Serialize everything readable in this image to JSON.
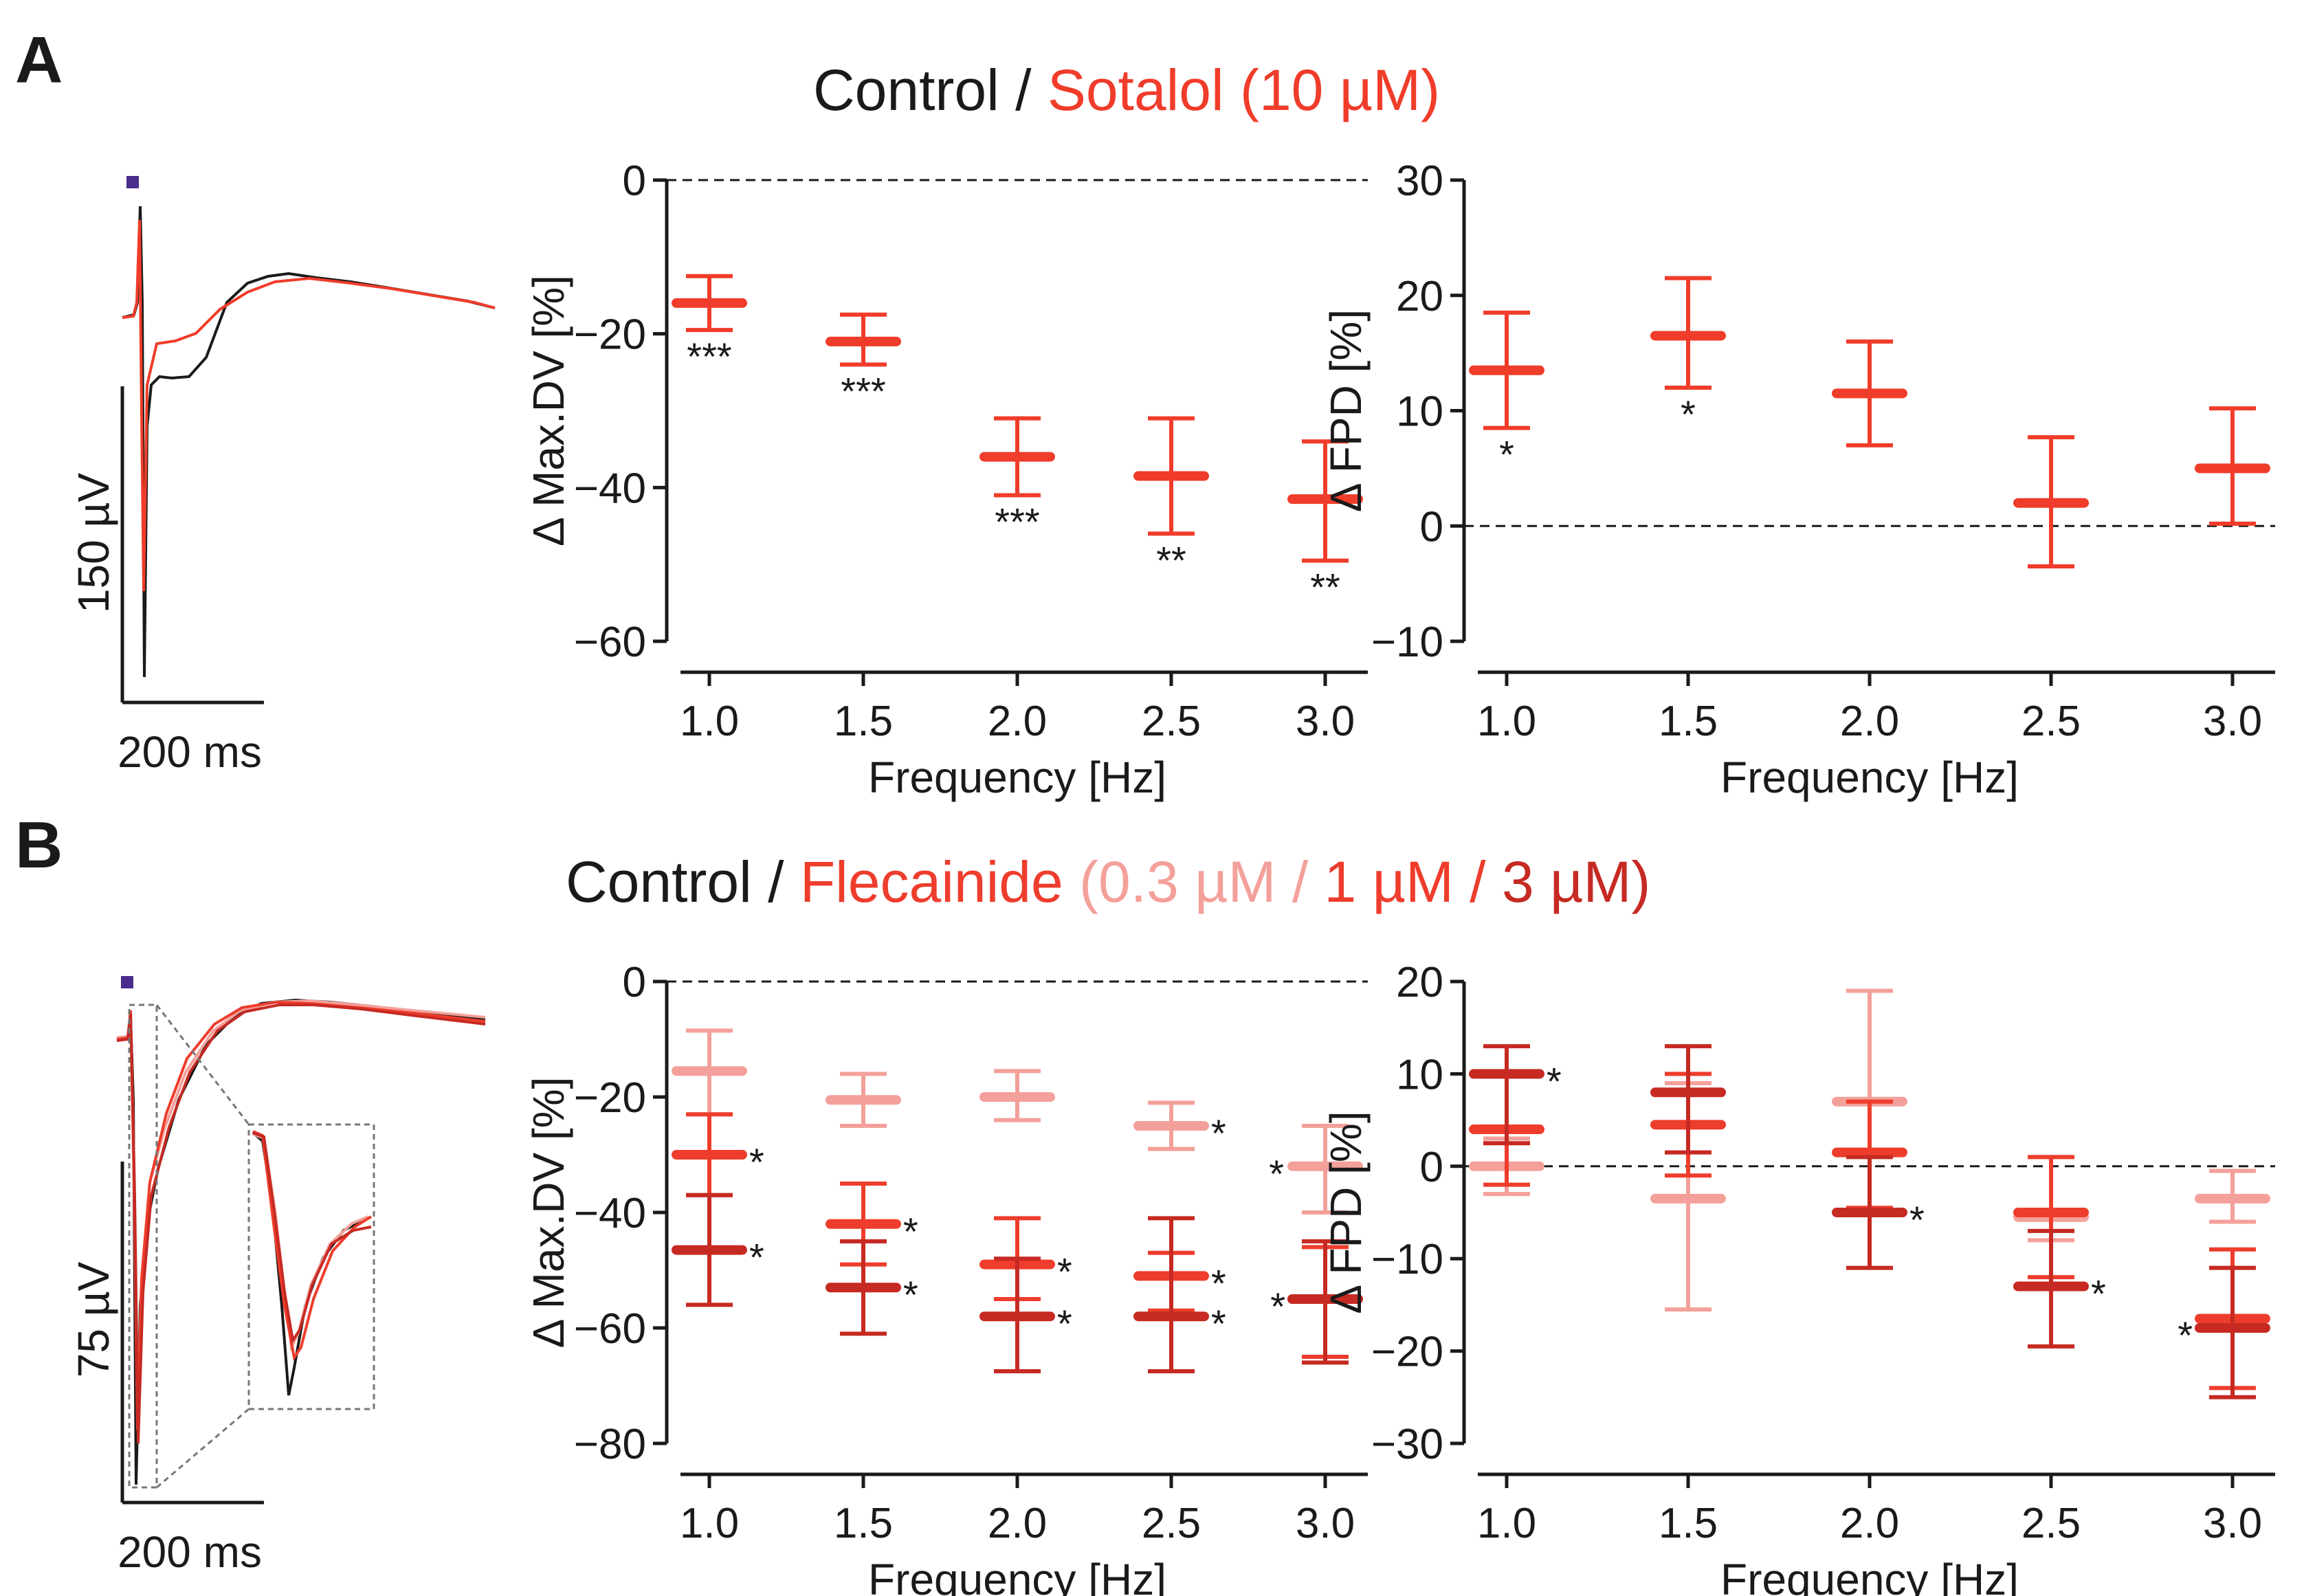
{
  "panels": {
    "a": {
      "label": "A",
      "title": {
        "control": "Control",
        "slash": " / ",
        "drug": "Sotalol (10 µM)"
      },
      "trace": {
        "scale_v": "150 µV",
        "scale_t": "200 ms"
      }
    },
    "b": {
      "label": "B",
      "title": {
        "control": "Control",
        "slash": " / ",
        "drug": "Flecainide",
        "c1": "0.3 µM /",
        "c2": "1 µM /",
        "c3": "3 µM)",
        "c0": "(",
        "sep": " "
      },
      "trace": {
        "scale_v": "75 µV",
        "scale_t": "200 ms"
      }
    }
  },
  "colors": {
    "control": "#1a1a1a",
    "sotalol": "#f03c2a",
    "fle_low": "#f4a09a",
    "fle_mid": "#ee3d2c",
    "fle_high": "#c62a23",
    "stim": "#4b2c8c"
  },
  "chart_data": [
    {
      "id": "a_maxdv",
      "type": "scatter",
      "error_bars": true,
      "xlabel": "Frequency [Hz]",
      "ylabel": "Δ Max.DV [%]",
      "ylim": [
        -60,
        0
      ],
      "yticks": [
        0,
        -20,
        -40,
        -60
      ],
      "yticklabels": [
        "0",
        "−20",
        "−40",
        "−60"
      ],
      "categories": [
        "1.0",
        "1.5",
        "2.0",
        "2.5",
        "3.0"
      ],
      "reference_line": 0,
      "series": [
        {
          "name": "Sotalol (10 µM)",
          "color": "#f03c2a",
          "values": [
            -16,
            -21,
            -36,
            -38.5,
            -41.5
          ],
          "lower": [
            -19.5,
            -24,
            -41,
            -46,
            -49.5
          ],
          "upper": [
            -12.5,
            -17.5,
            -31,
            -31,
            -34
          ],
          "significance": [
            "***",
            "***",
            "***",
            "**",
            "**"
          ]
        }
      ]
    },
    {
      "id": "a_fpd",
      "type": "scatter",
      "error_bars": true,
      "xlabel": "Frequency [Hz]",
      "ylabel": "Δ FPD [%]",
      "ylim": [
        -10,
        30
      ],
      "yticks": [
        30,
        20,
        10,
        0,
        -10
      ],
      "yticklabels": [
        "30",
        "20",
        "10",
        "0",
        "−10"
      ],
      "categories": [
        "1.0",
        "1.5",
        "2.0",
        "2.5",
        "3.0"
      ],
      "reference_line": 0,
      "series": [
        {
          "name": "Sotalol (10 µM)",
          "color": "#f03c2a",
          "values": [
            13.5,
            16.5,
            11.5,
            2,
            5
          ],
          "lower": [
            8.5,
            12,
            7,
            -3.5,
            0.2
          ],
          "upper": [
            18.5,
            21.5,
            16,
            7.7,
            10.2
          ],
          "significance": [
            "*",
            "*",
            "",
            "",
            ""
          ]
        }
      ]
    },
    {
      "id": "b_maxdv",
      "type": "scatter",
      "error_bars": true,
      "xlabel": "Frequency [Hz]",
      "ylabel": "Δ Max.DV [%]",
      "ylim": [
        -80,
        0
      ],
      "yticks": [
        0,
        -20,
        -40,
        -60,
        -80
      ],
      "yticklabels": [
        "0",
        "−20",
        "−40",
        "−60",
        "−80"
      ],
      "categories": [
        "1.0",
        "1.5",
        "2.0",
        "2.5",
        "3.0"
      ],
      "reference_line": 0,
      "series": [
        {
          "name": "Flecainide 0.3 µM",
          "color": "#f4a09a",
          "values": [
            -15.5,
            -20.5,
            -20,
            -25,
            -32
          ],
          "lower": [
            -23,
            -25,
            -24,
            -29,
            -40
          ],
          "upper": [
            -8.5,
            -16,
            -15.5,
            -21,
            -25
          ],
          "significance": [
            "",
            "",
            "",
            "*",
            "*"
          ]
        },
        {
          "name": "Flecainide 1 µM",
          "color": "#ee3d2c",
          "values": [
            -30,
            -42,
            -49,
            -51,
            -55
          ],
          "lower": [
            -37,
            -49,
            -55,
            -57,
            -65
          ],
          "upper": [
            -23,
            -35,
            -41,
            -47,
            -46
          ],
          "significance": [
            "*",
            "*",
            "*",
            "*",
            ""
          ]
        },
        {
          "name": "Flecainide 3 µM",
          "color": "#c62a23",
          "values": [
            -46.5,
            -53,
            -58,
            -58,
            -55
          ],
          "lower": [
            -56,
            -61,
            -67.5,
            -67.5,
            -66
          ],
          "upper": [
            -37,
            -45,
            -48,
            -41,
            -45
          ],
          "significance": [
            "*",
            "*",
            "*",
            "*",
            "*"
          ]
        }
      ]
    },
    {
      "id": "b_fpd",
      "type": "scatter",
      "error_bars": true,
      "xlabel": "Frequency [Hz]",
      "ylabel": "Δ FPD [%]",
      "ylim": [
        -30,
        20
      ],
      "yticks": [
        20,
        10,
        0,
        -10,
        -20,
        -30
      ],
      "yticklabels": [
        "20",
        "10",
        "0",
        "−10",
        "−20",
        "−30"
      ],
      "categories": [
        "1.0",
        "1.5",
        "2.0",
        "2.5",
        "3.0"
      ],
      "reference_line": 0,
      "series": [
        {
          "name": "Flecainide 0.3 µM",
          "color": "#f4a09a",
          "values": [
            0,
            -3.5,
            7,
            -5.5,
            -3.5
          ],
          "lower": [
            -3,
            -15.5,
            -5,
            -8,
            -6
          ],
          "upper": [
            3,
            9,
            19,
            1,
            -0.5
          ],
          "significance": [
            "",
            "",
            "",
            "",
            ""
          ]
        },
        {
          "name": "Flecainide 1 µM",
          "color": "#ee3d2c",
          "values": [
            4,
            4.5,
            1.5,
            -5,
            -16.5
          ],
          "lower": [
            -2,
            -1,
            -4.5,
            -12,
            -24
          ],
          "upper": [
            10,
            10,
            7,
            1,
            -9
          ],
          "significance": [
            "",
            "",
            "",
            "",
            ""
          ]
        },
        {
          "name": "Flecainide 3 µM",
          "color": "#c62a23",
          "values": [
            10,
            8,
            -5,
            -13,
            -17.5
          ],
          "lower": [
            2.5,
            1.5,
            -11,
            -19.5,
            -25
          ],
          "upper": [
            13,
            13,
            1,
            -7,
            -11
          ],
          "significance": [
            "*",
            "",
            "*",
            "*",
            "*"
          ]
        }
      ]
    }
  ]
}
